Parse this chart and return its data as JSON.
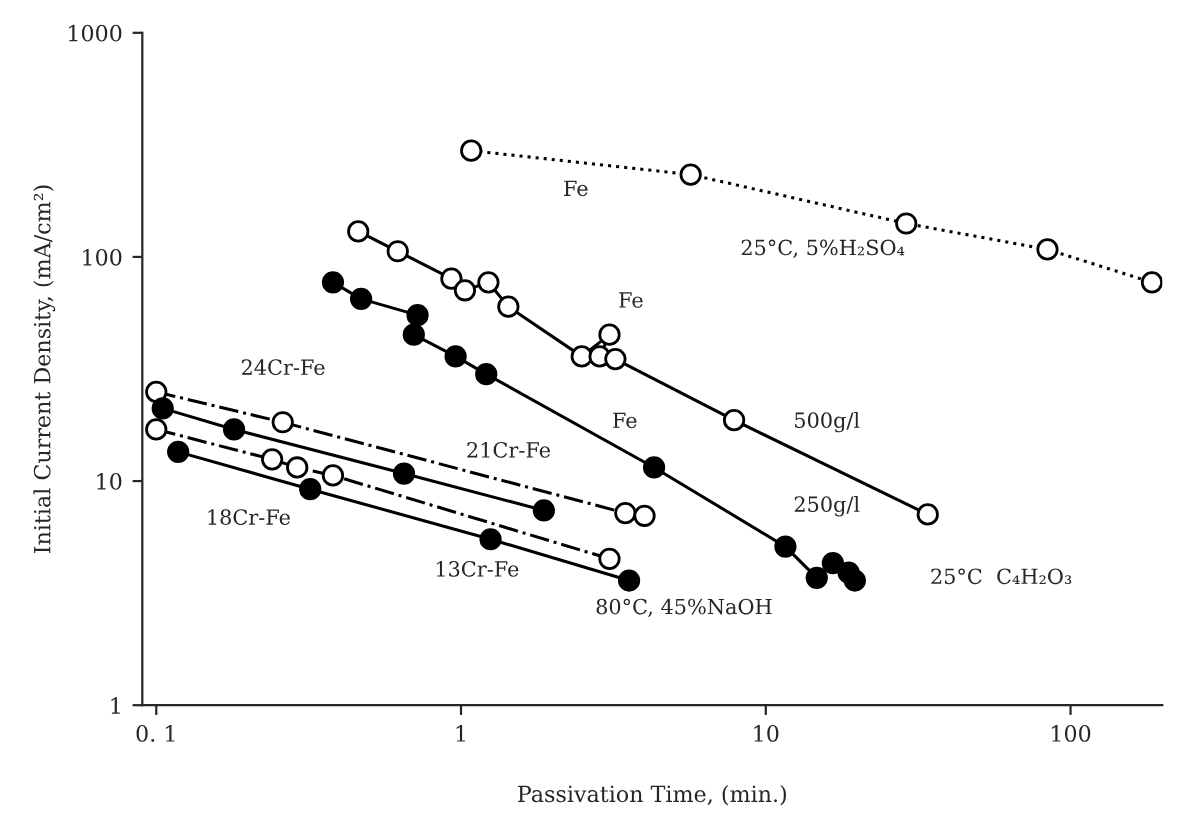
{
  "chart_data": {
    "type": "line",
    "xlabel": "Passivation Time, (min.)",
    "ylabel": "Initial Current Density, (mA/cm²)",
    "log": "xy",
    "xlim": [
      0.09,
      200
    ],
    "ylim": [
      1,
      1000
    ],
    "xticks": [
      {
        "value": 0.1,
        "label": "0. 1"
      },
      1,
      10,
      100
    ],
    "yticks": [
      1,
      10,
      100,
      1000
    ],
    "grid": false,
    "legend": false,
    "marker": "circle",
    "series": [
      {
        "color": "#000000",
        "line_style": "dotted",
        "x": [
          1.08,
          5.67,
          28.9,
          84,
          185
        ],
        "values": [
          298,
          233,
          141,
          108,
          77
        ]
      },
      {
        "color": "#000000",
        "line_style": "solid",
        "x": [
          0.46,
          0.62,
          0.93,
          1.03,
          1.23,
          1.43,
          2.49,
          3.07,
          2.85,
          3.21,
          7.87,
          34
        ],
        "values": [
          130,
          106,
          80,
          71,
          77,
          60,
          36,
          45,
          36,
          35,
          18.7,
          7.1
        ]
      },
      {
        "color": "#000000",
        "line_style": "solid",
        "x": [
          0.38,
          0.47,
          0.72,
          0.7,
          0.96,
          1.21,
          4.3,
          11.6,
          14.7,
          16.6,
          18.7,
          19.6
        ],
        "values": [
          77,
          65,
          55,
          45,
          36,
          30,
          11.5,
          5.1,
          3.7,
          4.3,
          3.9,
          3.6
        ]
      },
      {
        "color": "#000000",
        "line_style": "dashed",
        "x": [
          0.1,
          0.26,
          3.46,
          4.0
        ],
        "values": [
          25,
          18.3,
          7.2,
          7.0
        ]
      },
      {
        "color": "#000000",
        "line_style": "solid",
        "x": [
          0.105,
          0.18,
          0.65,
          1.87
        ],
        "values": [
          21.1,
          17,
          10.8,
          7.4
        ]
      },
      {
        "color": "#000000",
        "line_style": "dashed",
        "x": [
          0.1,
          0.24,
          0.29,
          0.38,
          3.07
        ],
        "values": [
          17,
          12.5,
          11.5,
          10.6,
          4.5
        ]
      },
      {
        "color": "#000000",
        "line_style": "solid",
        "x": [
          0.118,
          0.32,
          1.25,
          3.56
        ],
        "values": [
          13.5,
          9.2,
          5.5,
          3.6
        ]
      }
    ],
    "annotations": [
      "Fe",
      "25°C, 5%H₂SO₄",
      "Fe",
      "Fe",
      "500g/l",
      "250g/l",
      "25°C  C₄H₂O₃",
      "80°C, 45%NaOH",
      "24Cr-Fe",
      "21Cr-Fe",
      "18Cr-Fe",
      "13Cr-Fe"
    ]
  }
}
